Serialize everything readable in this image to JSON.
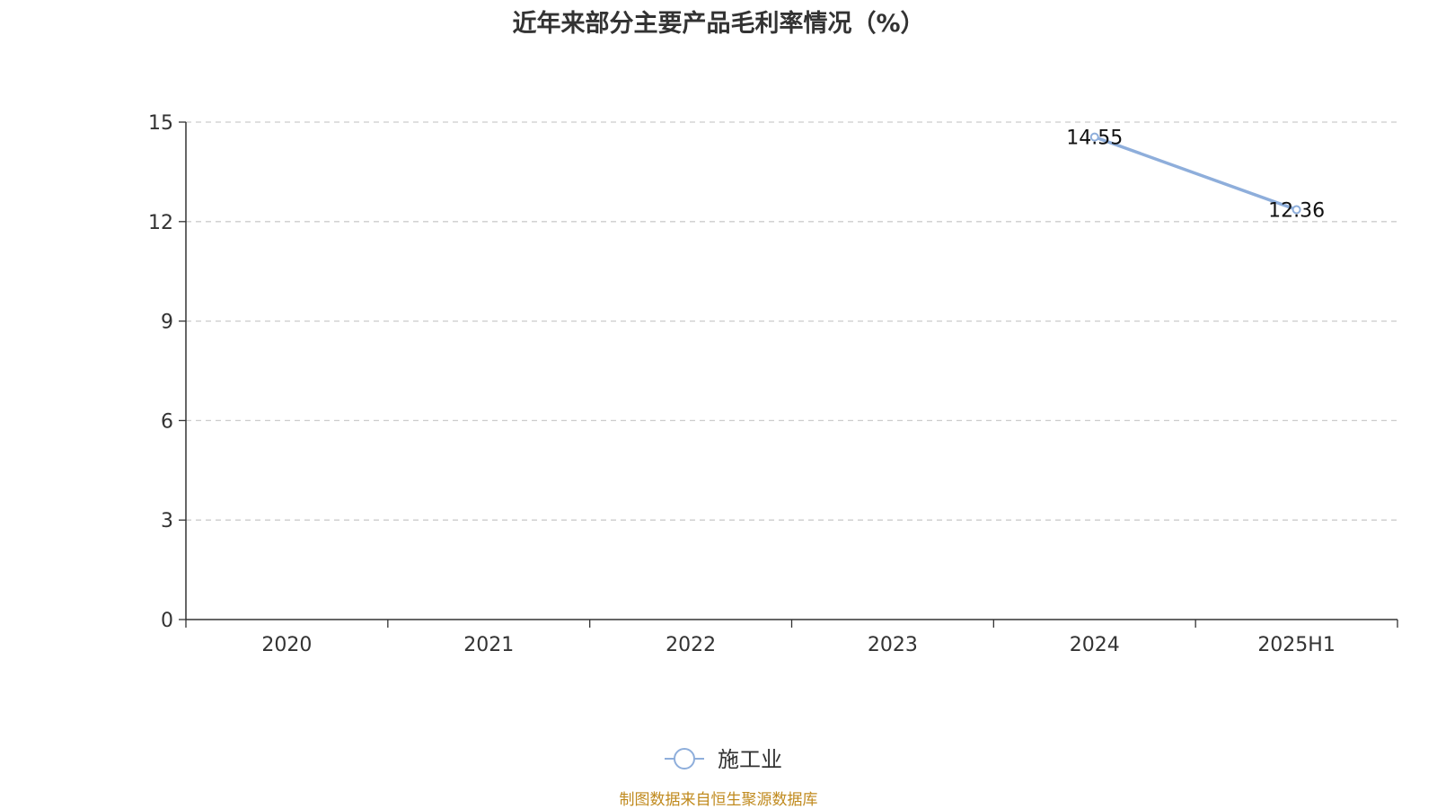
{
  "chart_data": {
    "type": "line",
    "title": "近年来部分主要产品毛利率情况（%）",
    "categories": [
      "2020",
      "2021",
      "2022",
      "2023",
      "2024",
      "2025H1"
    ],
    "series": [
      {
        "name": "施工业",
        "values": [
          null,
          null,
          null,
          null,
          14.55,
          12.36
        ],
        "labels": [
          "",
          "",
          "",
          "",
          "14.55",
          "12.36"
        ],
        "color": "#8eaedb"
      }
    ],
    "y_ticks": [
      "0",
      "3",
      "6",
      "9",
      "12",
      "15"
    ],
    "ylim": [
      0,
      15
    ],
    "grid": "horizontal dashed",
    "legend_position": "bottom-center"
  },
  "source_note": "制图数据来自恒生聚源数据库"
}
